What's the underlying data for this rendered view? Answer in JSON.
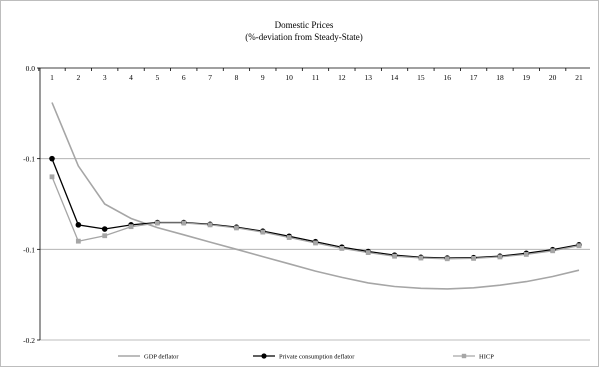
{
  "chart_data": {
    "type": "line",
    "title": "Domestic Prices",
    "subtitle": "(%-deviation from Steady-State)",
    "categories": [
      "1",
      "2",
      "3",
      "4",
      "5",
      "6",
      "7",
      "8",
      "9",
      "10",
      "11",
      "12",
      "13",
      "14",
      "15",
      "16",
      "17",
      "18",
      "19",
      "20",
      "21"
    ],
    "y_ticks": [
      {
        "value": 0.0,
        "label": "0.0"
      },
      {
        "value": -0.05,
        "label": "-0.1"
      },
      {
        "value": -0.1,
        "label": "-0.1"
      },
      {
        "value": -0.15,
        "label": "-0.2"
      }
    ],
    "ylim": [
      -0.15,
      0.0
    ],
    "xlabel": "",
    "ylabel": "",
    "grid": true,
    "legend_position": "bottom",
    "series": [
      {
        "name": "GDP deflator",
        "color": "#a6a6a6",
        "marker": "none",
        "values": [
          -0.019,
          -0.054,
          -0.075,
          -0.083,
          -0.088,
          -0.092,
          -0.096,
          -0.1,
          -0.104,
          -0.108,
          -0.112,
          -0.1155,
          -0.1185,
          -0.1205,
          -0.1215,
          -0.1218,
          -0.1212,
          -0.1198,
          -0.1178,
          -0.115,
          -0.1115
        ]
      },
      {
        "name": "Private consumption deflator",
        "color": "#000000",
        "marker": "circle",
        "values": [
          -0.05,
          -0.0865,
          -0.0888,
          -0.0865,
          -0.0852,
          -0.0852,
          -0.0862,
          -0.0878,
          -0.09,
          -0.0928,
          -0.0958,
          -0.0988,
          -0.1012,
          -0.1032,
          -0.1044,
          -0.1048,
          -0.1046,
          -0.1038,
          -0.1022,
          -0.1002,
          -0.0975
        ]
      },
      {
        "name": "HICP",
        "color": "#a6a6a6",
        "marker": "square",
        "values": [
          -0.06,
          -0.0955,
          -0.0925,
          -0.0875,
          -0.0855,
          -0.0855,
          -0.0865,
          -0.0882,
          -0.0905,
          -0.0935,
          -0.0965,
          -0.0995,
          -0.1018,
          -0.1038,
          -0.1048,
          -0.1052,
          -0.105,
          -0.1042,
          -0.1028,
          -0.1008,
          -0.098
        ]
      }
    ]
  }
}
